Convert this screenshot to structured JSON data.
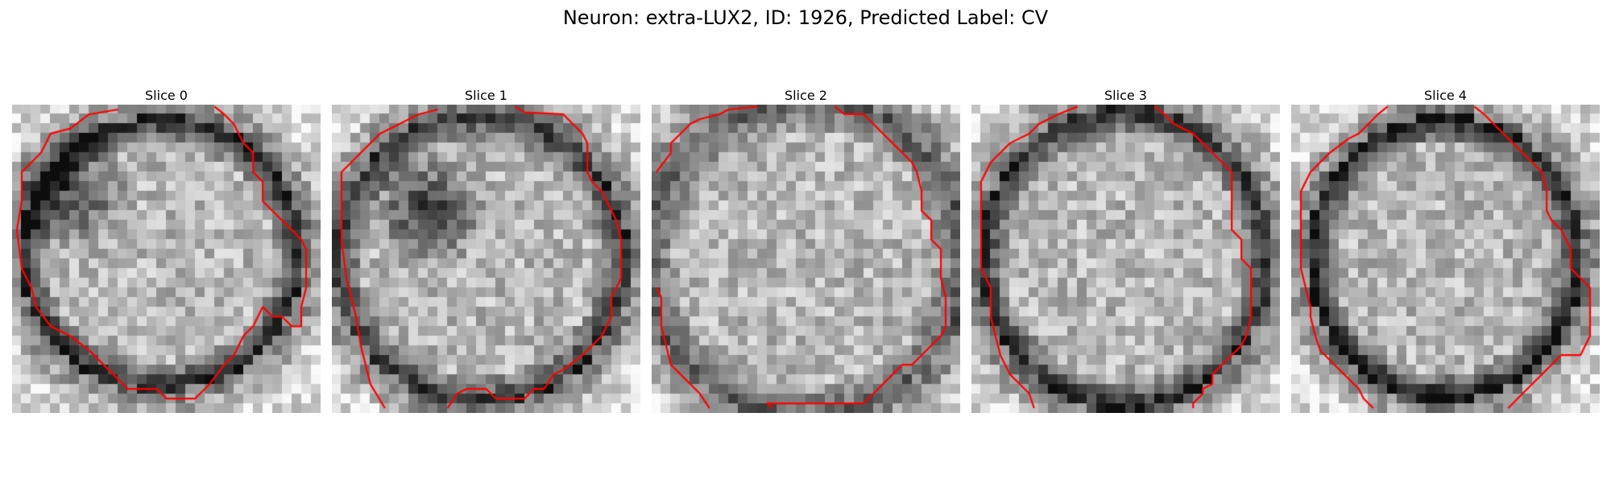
{
  "figure": {
    "title": "Neuron: extra-LUX2, ID: 1926, Predicted Label: CV",
    "contour_color": "#ff0000",
    "panels": [
      {
        "title": "Slice 0",
        "seed": 11
      },
      {
        "title": "Slice 1",
        "seed": 23
      },
      {
        "title": "Slice 2",
        "seed": 37
      },
      {
        "title": "Slice 3",
        "seed": 41
      },
      {
        "title": "Slice 4",
        "seed": 59
      }
    ]
  }
}
